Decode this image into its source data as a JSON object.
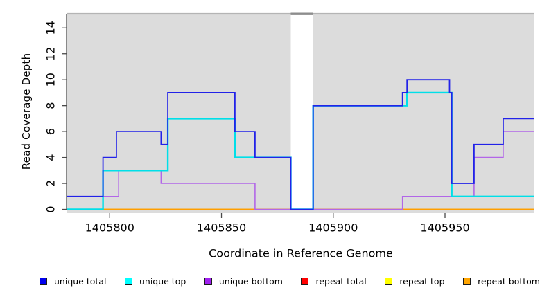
{
  "chart_data": {
    "type": "line",
    "subtype": "step-coverage-plot",
    "title": "",
    "xlabel": "Coordinate in Reference Genome",
    "ylabel": "Read Coverage Depth",
    "xlim": [
      1405781,
      1405990
    ],
    "ylim": [
      0,
      15
    ],
    "x_ticks": [
      1405800,
      1405850,
      1405900,
      1405950
    ],
    "y_ticks": [
      0,
      2,
      4,
      6,
      8,
      10,
      12,
      14
    ],
    "grid": false,
    "legend_position": "bottom",
    "plot_bg_color": "#dcdcdc",
    "page_bg_color": "#ffffff",
    "axis_color": "#4a4a4a",
    "plot_top_border_color": "#b4b4b4",
    "gap_region": {
      "x_start": 1405881,
      "x_end": 1405891,
      "fill": "#ffffff",
      "cap_color": "#8d8d8d"
    },
    "series": [
      {
        "name": "repeat total",
        "color": "#e10000",
        "lw": 1.6,
        "steps": [
          [
            1405781,
            0
          ]
        ]
      },
      {
        "name": "repeat top",
        "color": "#ffff00",
        "lw": 1.6,
        "steps": [
          [
            1405781,
            0
          ]
        ]
      },
      {
        "name": "repeat bottom",
        "color": "#ff9e00",
        "lw": 1.8,
        "steps": [
          [
            1405781,
            0
          ]
        ]
      },
      {
        "name": "unique bottom",
        "color": "#b266e8",
        "lw": 1.6,
        "steps": [
          [
            1405781,
            1
          ],
          [
            1405804,
            3
          ],
          [
            1405823,
            2
          ],
          [
            1405865,
            0
          ],
          [
            1405931,
            1
          ],
          [
            1405963,
            4
          ],
          [
            1405976,
            6
          ]
        ]
      },
      {
        "name": "unique top",
        "color": "#00dfe8",
        "lw": 2.4,
        "steps": [
          [
            1405781,
            0
          ],
          [
            1405797,
            3
          ],
          [
            1405826,
            7
          ],
          [
            1405856,
            4
          ],
          [
            1405881,
            0
          ],
          [
            1405891,
            8
          ],
          [
            1405933,
            9
          ],
          [
            1405953,
            1
          ]
        ]
      },
      {
        "name": "unique total",
        "color": "#2222e8",
        "lw": 1.8,
        "steps": [
          [
            1405781,
            1
          ],
          [
            1405797,
            4
          ],
          [
            1405803,
            6
          ],
          [
            1405823,
            5
          ],
          [
            1405826,
            9
          ],
          [
            1405856,
            6
          ],
          [
            1405865,
            4
          ],
          [
            1405881,
            0
          ],
          [
            1405891,
            8
          ],
          [
            1405931,
            9
          ],
          [
            1405933,
            10
          ],
          [
            1405952,
            9
          ],
          [
            1405953,
            2
          ],
          [
            1405963,
            5
          ],
          [
            1405976,
            7
          ]
        ]
      }
    ],
    "legend": [
      {
        "label": "unique total",
        "color": "#0000ee"
      },
      {
        "label": "unique top",
        "color": "#00ffff"
      },
      {
        "label": "unique bottom",
        "color": "#a020f0"
      },
      {
        "label": "repeat total",
        "color": "#ff0000"
      },
      {
        "label": "repeat top",
        "color": "#ffff00"
      },
      {
        "label": "repeat bottom",
        "color": "#ffa500"
      }
    ]
  }
}
